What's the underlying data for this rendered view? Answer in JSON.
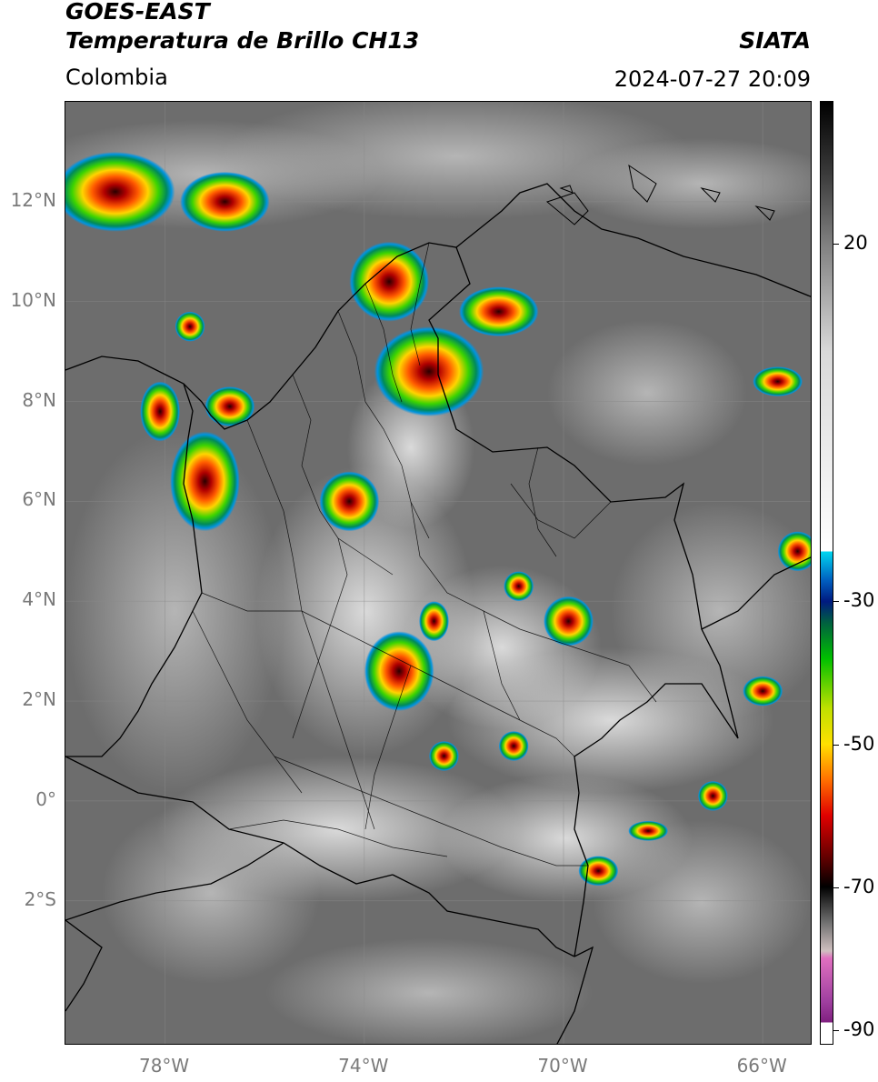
{
  "header": {
    "satellite": "GOES-EAST",
    "product": "Temperatura de Brillo CH13",
    "region": "Colombia",
    "organization": "SIATA",
    "datetime": "2024-07-27 20:09"
  },
  "map": {
    "lat_labels": [
      "12°N",
      "10°N",
      "8°N",
      "6°N",
      "4°N",
      "2°N",
      "0°",
      "2°S"
    ],
    "lon_labels": [
      "78°W",
      "74°W",
      "70°W",
      "66°W"
    ],
    "lat_values": [
      12,
      10,
      8,
      6,
      4,
      2,
      0,
      -2
    ],
    "lon_values": [
      -78,
      -74,
      -70,
      -66
    ],
    "extent": {
      "lon_min": -80.0,
      "lon_max": -65.0,
      "lat_min": -4.9,
      "lat_max": 14.0
    }
  },
  "colorbar": {
    "tick_labels": [
      "20",
      "-30",
      "-50",
      "-70",
      "-90"
    ],
    "tick_values": [
      20,
      -30,
      -50,
      -70,
      -90
    ],
    "range": [
      -92,
      40
    ]
  },
  "storm_cells": [
    {
      "lon": -79.0,
      "lat": 12.2,
      "rx": 1.2,
      "ry": 0.8
    },
    {
      "lon": -76.8,
      "lat": 12.0,
      "rx": 0.9,
      "ry": 0.6
    },
    {
      "lon": -73.5,
      "lat": 10.4,
      "rx": 0.8,
      "ry": 0.8
    },
    {
      "lon": -72.7,
      "lat": 8.6,
      "rx": 1.1,
      "ry": 0.9
    },
    {
      "lon": -71.3,
      "lat": 9.8,
      "rx": 0.8,
      "ry": 0.5
    },
    {
      "lon": -77.5,
      "lat": 9.5,
      "rx": 0.3,
      "ry": 0.3
    },
    {
      "lon": -78.1,
      "lat": 7.8,
      "rx": 0.4,
      "ry": 0.6
    },
    {
      "lon": -76.7,
      "lat": 7.9,
      "rx": 0.5,
      "ry": 0.4
    },
    {
      "lon": -77.2,
      "lat": 6.4,
      "rx": 0.7,
      "ry": 1.0
    },
    {
      "lon": -74.3,
      "lat": 6.0,
      "rx": 0.6,
      "ry": 0.6
    },
    {
      "lon": -73.3,
      "lat": 2.6,
      "rx": 0.7,
      "ry": 0.8
    },
    {
      "lon": -72.6,
      "lat": 3.6,
      "rx": 0.3,
      "ry": 0.4
    },
    {
      "lon": -70.9,
      "lat": 4.3,
      "rx": 0.3,
      "ry": 0.3
    },
    {
      "lon": -69.9,
      "lat": 3.6,
      "rx": 0.5,
      "ry": 0.5
    },
    {
      "lon": -66.0,
      "lat": 2.2,
      "rx": 0.4,
      "ry": 0.3
    },
    {
      "lon": -65.3,
      "lat": 5.0,
      "rx": 0.4,
      "ry": 0.4
    },
    {
      "lon": -65.7,
      "lat": 8.4,
      "rx": 0.5,
      "ry": 0.3
    },
    {
      "lon": -67.0,
      "lat": 0.1,
      "rx": 0.3,
      "ry": 0.3
    },
    {
      "lon": -68.3,
      "lat": -0.6,
      "rx": 0.4,
      "ry": 0.2
    },
    {
      "lon": -71.0,
      "lat": 1.1,
      "rx": 0.3,
      "ry": 0.3
    },
    {
      "lon": -72.4,
      "lat": 0.9,
      "rx": 0.3,
      "ry": 0.3
    },
    {
      "lon": -69.3,
      "lat": -1.4,
      "rx": 0.4,
      "ry": 0.3
    }
  ]
}
